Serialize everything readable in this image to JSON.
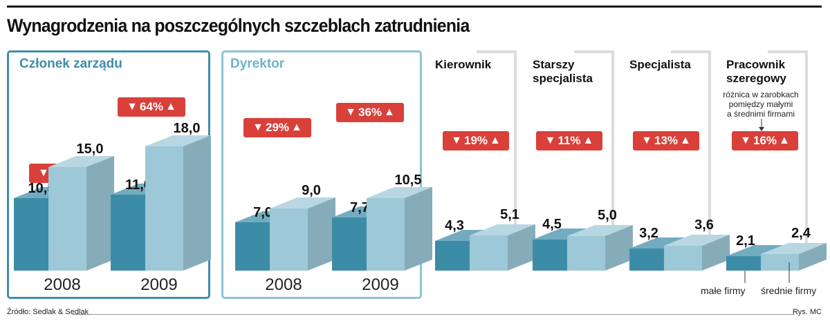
{
  "title": "Wynagrodzenia na poszczególnych szczeblach zatrudnienia",
  "footer": {
    "source": "Źródło: Sedlak & Sedlak",
    "credit": "Rys. MC"
  },
  "colors": {
    "small_firms": "#3d8ca7",
    "medium_firms": "#9cc8d8",
    "badge": "#d9403a",
    "accent_box": "#3f8eaa",
    "light_box": "#8cc3d4"
  },
  "legend": {
    "small": "małe firmy",
    "medium": "średnie firmy"
  },
  "note": [
    "różnica w zarobkach",
    "pomiędzy małymi",
    "a średnimi firmami"
  ],
  "chart_data": {
    "type": "bar",
    "title": "Wynagrodzenia na poszczególnych szczeblach zatrudnienia",
    "series": [
      {
        "name": "małe firmy"
      },
      {
        "name": "średnie firmy"
      }
    ],
    "groups": [
      {
        "label": "Członek zarządu",
        "years": [
          {
            "label": "2008",
            "small": 10.5,
            "small_label": "10,5",
            "medium": 15.0,
            "medium_label": "15,0",
            "diff": "43%"
          },
          {
            "label": "2009",
            "small": 11.0,
            "small_label": "11,0",
            "medium": 18.0,
            "medium_label": "18,0",
            "diff": "64%"
          }
        ]
      },
      {
        "label": "Dyrektor",
        "years": [
          {
            "label": "2008",
            "small": 7.0,
            "small_label": "7,0",
            "medium": 9.0,
            "medium_label": "9,0",
            "diff": "29%"
          },
          {
            "label": "2009",
            "small": 7.7,
            "small_label": "7,7",
            "medium": 10.5,
            "medium_label": "10,5",
            "diff": "36%"
          }
        ]
      },
      {
        "label": "Kierownik",
        "small": 4.3,
        "small_label": "4,3",
        "medium": 5.1,
        "medium_label": "5,1",
        "diff": "19%"
      },
      {
        "label": "Starszy specjalista",
        "small": 4.5,
        "small_label": "4,5",
        "medium": 5.0,
        "medium_label": "5,0",
        "diff": "11%"
      },
      {
        "label": "Specjalista",
        "small": 3.2,
        "small_label": "3,2",
        "medium": 3.6,
        "medium_label": "3,6",
        "diff": "13%"
      },
      {
        "label": "Pracownik szeregowy",
        "small": 2.1,
        "small_label": "2,1",
        "medium": 2.4,
        "medium_label": "2,4",
        "diff": "16%"
      }
    ]
  }
}
